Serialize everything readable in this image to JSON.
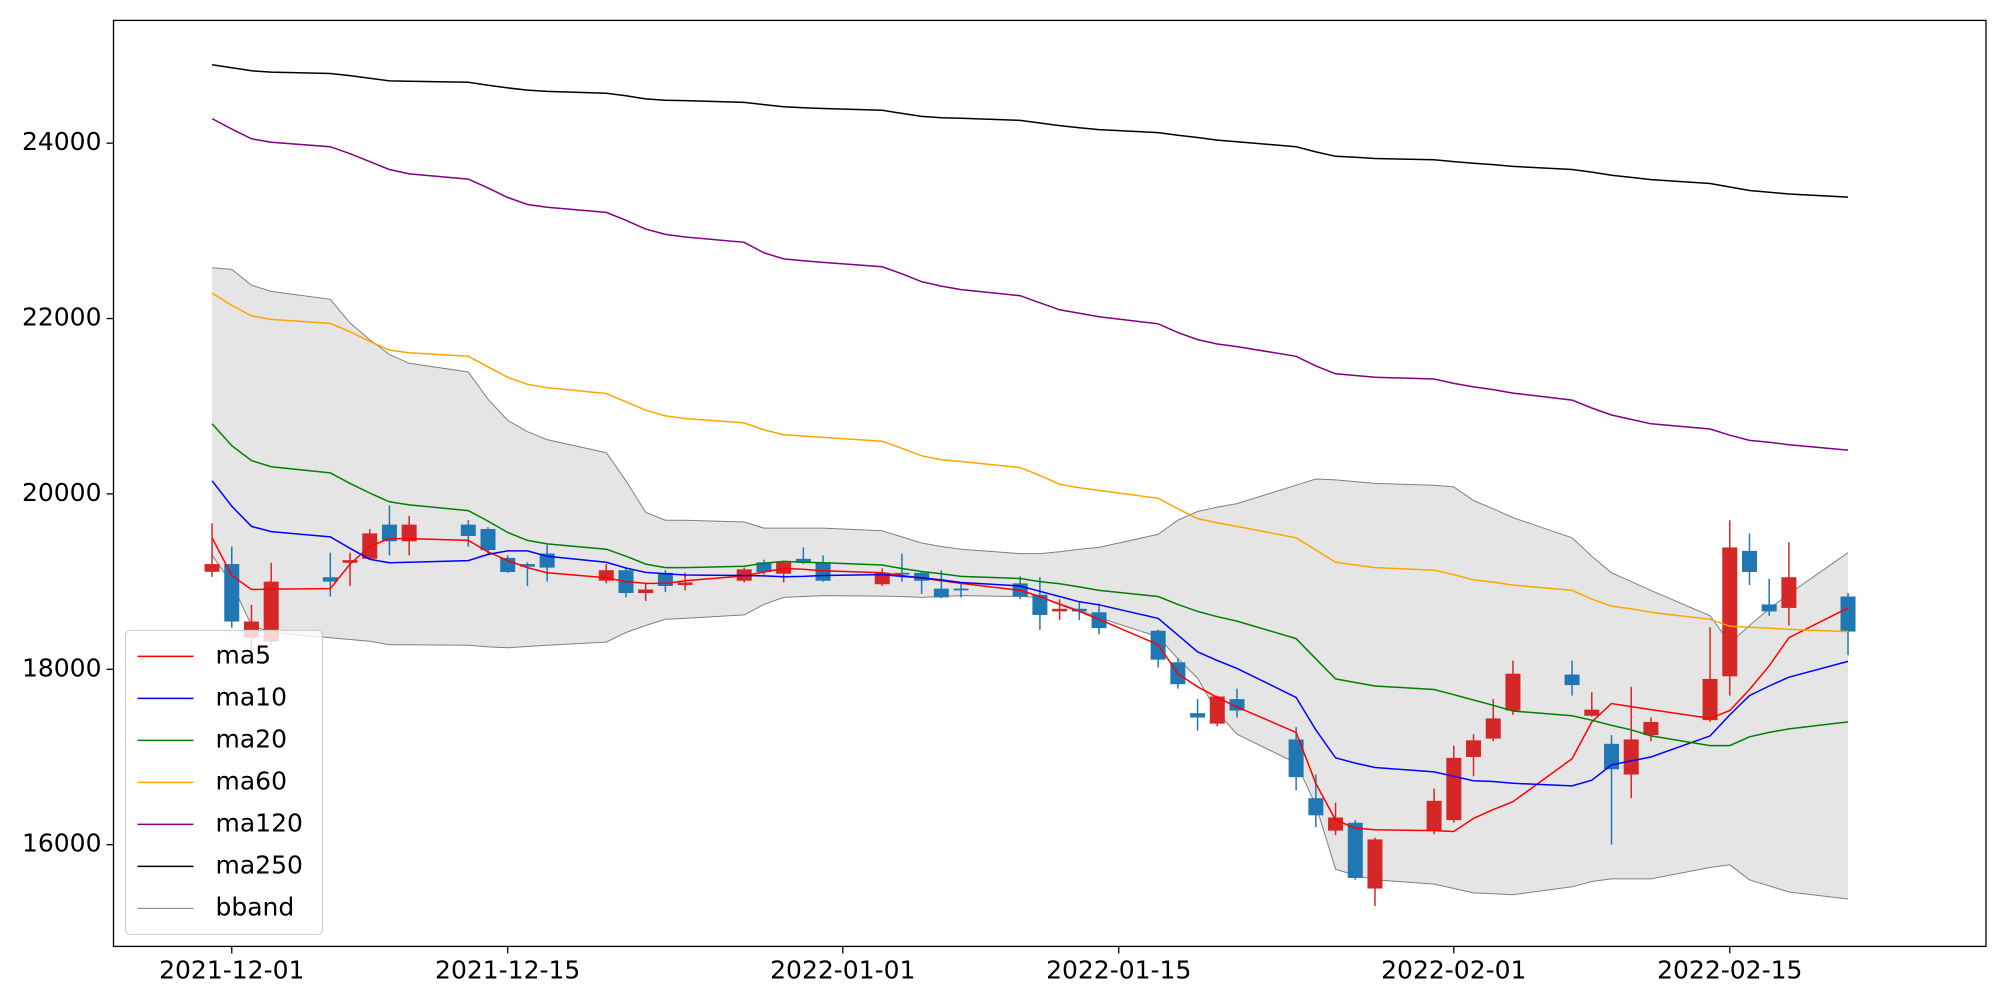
{
  "chart_data": {
    "type": "candlestick",
    "x": [
      "2021-11-30",
      "2021-12-01",
      "2021-12-02",
      "2021-12-03",
      "2021-12-06",
      "2021-12-07",
      "2021-12-08",
      "2021-12-09",
      "2021-12-10",
      "2021-12-13",
      "2021-12-14",
      "2021-12-15",
      "2021-12-16",
      "2021-12-17",
      "2021-12-20",
      "2021-12-21",
      "2021-12-22",
      "2021-12-23",
      "2021-12-24",
      "2021-12-27",
      "2021-12-28",
      "2021-12-29",
      "2021-12-30",
      "2021-12-31",
      "2022-01-03",
      "2022-01-04",
      "2022-01-05",
      "2022-01-06",
      "2022-01-07",
      "2022-01-10",
      "2022-01-11",
      "2022-01-12",
      "2022-01-13",
      "2022-01-14",
      "2022-01-17",
      "2022-01-18",
      "2022-01-19",
      "2022-01-20",
      "2022-01-21",
      "2022-01-24",
      "2022-01-25",
      "2022-01-26",
      "2022-01-27",
      "2022-01-28",
      "2022-01-31",
      "2022-02-01",
      "2022-02-02",
      "2022-02-03",
      "2022-02-04",
      "2022-02-07",
      "2022-02-08",
      "2022-02-09",
      "2022-02-10",
      "2022-02-11",
      "2022-02-14",
      "2022-02-15",
      "2022-02-16",
      "2022-02-17",
      "2022-02-18",
      "2022-02-21"
    ],
    "open": [
      19112,
      19200,
      18360,
      18315,
      19050,
      19215,
      19260,
      19650,
      19460,
      19650,
      19600,
      19270,
      19200,
      19320,
      19010,
      19130,
      18870,
      19100,
      18960,
      19010,
      19220,
      19090,
      19260,
      19220,
      18970,
      19100,
      19100,
      18920,
      18920,
      18980,
      18850,
      18660,
      18690,
      18650,
      18440,
      18080,
      17500,
      17380,
      17660,
      17200,
      16530,
      16160,
      16250,
      15500,
      16160,
      16280,
      17000,
      17210,
      17530,
      17940,
      17470,
      17150,
      16800,
      17250,
      17420,
      17920,
      19350,
      18740,
      18700,
      18830
    ],
    "high": [
      19665,
      19400,
      18735,
      19215,
      19330,
      19330,
      19600,
      19870,
      19750,
      19700,
      19620,
      19300,
      19220,
      19420,
      19200,
      19150,
      18980,
      19130,
      19100,
      19160,
      19250,
      19230,
      19390,
      19300,
      19150,
      19320,
      19110,
      19130,
      18980,
      19060,
      19050,
      18800,
      18760,
      18750,
      18450,
      18130,
      17660,
      17700,
      17780,
      17340,
      16800,
      16480,
      16280,
      16080,
      16640,
      17130,
      17260,
      17660,
      18100,
      18100,
      17740,
      17250,
      17800,
      17450,
      18480,
      19700,
      19550,
      19030,
      19450,
      18870
    ],
    "low": [
      19055,
      18475,
      18210,
      18285,
      18830,
      18950,
      19250,
      19300,
      19300,
      19400,
      19300,
      19100,
      18950,
      19000,
      18980,
      18820,
      18780,
      18880,
      18900,
      18990,
      19080,
      18990,
      19200,
      19000,
      18950,
      19000,
      18860,
      18810,
      18820,
      18800,
      18450,
      18560,
      18560,
      18400,
      18020,
      17780,
      17300,
      17350,
      17450,
      16620,
      16200,
      16110,
      15600,
      15300,
      16120,
      16250,
      16780,
      17180,
      17480,
      17700,
      17460,
      16000,
      16530,
      17180,
      17400,
      17700,
      18960,
      18610,
      18500,
      18160
    ],
    "close": [
      19200,
      18545,
      18545,
      19000,
      19000,
      19245,
      19550,
      19460,
      19650,
      19520,
      19360,
      19110,
      19170,
      19160,
      19130,
      18870,
      18910,
      18950,
      18990,
      19140,
      19110,
      19220,
      19215,
      19010,
      19100,
      19080,
      19010,
      18820,
      18900,
      18830,
      18620,
      18690,
      18660,
      18470,
      18110,
      17830,
      17450,
      17690,
      17530,
      16770,
      16335,
      16310,
      15620,
      16060,
      16500,
      16990,
      17190,
      17440,
      17950,
      17820,
      17540,
      16860,
      17200,
      17400,
      17890,
      19390,
      19110,
      18660,
      19050,
      18430
    ],
    "up_color": "#d62728",
    "down_color": "#1f77b4",
    "series": [
      {
        "name": "ma5",
        "color": "#ff0000",
        "values": [
          19500,
          19070,
          18910,
          18915,
          18920,
          19200,
          19400,
          19490,
          19490,
          19470,
          19340,
          19240,
          19160,
          19100,
          19045,
          19000,
          18980,
          18980,
          19010,
          19065,
          19110,
          19150,
          19140,
          19125,
          19100,
          19070,
          19040,
          19010,
          18980,
          18900,
          18830,
          18740,
          18660,
          18570,
          18280,
          17950,
          17800,
          17680,
          17570,
          17280,
          16700,
          16280,
          16190,
          16170,
          16160,
          16150,
          16300,
          16400,
          16490,
          16980,
          17400,
          17610,
          17575,
          17540,
          17440,
          17530,
          17770,
          18040,
          18360,
          18700
        ]
      },
      {
        "name": "ma10",
        "color": "#0000ff",
        "values": [
          20150,
          19860,
          19630,
          19570,
          19510,
          19380,
          19255,
          19215,
          19220,
          19240,
          19310,
          19350,
          19350,
          19290,
          19220,
          19155,
          19105,
          19090,
          19075,
          19070,
          19065,
          19055,
          19060,
          19070,
          19080,
          19060,
          19045,
          19020,
          18990,
          18950,
          18890,
          18830,
          18770,
          18735,
          18580,
          18390,
          18200,
          18100,
          18010,
          17680,
          17310,
          16990,
          16930,
          16880,
          16830,
          16780,
          16730,
          16720,
          16700,
          16670,
          16735,
          16910,
          16955,
          17000,
          17240,
          17480,
          17700,
          17810,
          17910,
          18090
        ]
      },
      {
        "name": "ma20",
        "color": "#008000",
        "values": [
          20800,
          20550,
          20380,
          20310,
          20240,
          20120,
          20010,
          19910,
          19875,
          19810,
          19690,
          19560,
          19470,
          19430,
          19370,
          19290,
          19200,
          19160,
          19160,
          19175,
          19210,
          19230,
          19220,
          19215,
          19190,
          19150,
          19115,
          19090,
          19060,
          19035,
          19000,
          18975,
          18940,
          18900,
          18830,
          18740,
          18660,
          18600,
          18550,
          18350,
          18120,
          17890,
          17850,
          17810,
          17770,
          17710,
          17650,
          17590,
          17525,
          17470,
          17420,
          17360,
          17310,
          17240,
          17130,
          17130,
          17230,
          17280,
          17320,
          17400
        ]
      },
      {
        "name": "ma60",
        "color": "#ffa500",
        "values": [
          22290,
          22150,
          22030,
          21990,
          21945,
          21850,
          21740,
          21640,
          21610,
          21570,
          21450,
          21330,
          21250,
          21210,
          21145,
          21050,
          20955,
          20890,
          20860,
          20810,
          20730,
          20675,
          20660,
          20645,
          20600,
          20520,
          20435,
          20390,
          20370,
          20300,
          20210,
          20110,
          20070,
          20040,
          19950,
          19830,
          19720,
          19670,
          19630,
          19500,
          19360,
          19220,
          19190,
          19160,
          19130,
          19080,
          19020,
          18995,
          18960,
          18900,
          18800,
          18720,
          18690,
          18650,
          18570,
          18490,
          18480,
          18470,
          18455,
          18430
        ]
      },
      {
        "name": "ma120",
        "color": "#800080",
        "values": [
          24280,
          24160,
          24050,
          24010,
          23960,
          23880,
          23790,
          23700,
          23650,
          23590,
          23490,
          23380,
          23300,
          23270,
          23210,
          23120,
          23020,
          22960,
          22930,
          22870,
          22750,
          22680,
          22660,
          22640,
          22590,
          22510,
          22420,
          22370,
          22330,
          22260,
          22180,
          22100,
          22060,
          22020,
          21940,
          21840,
          21760,
          21710,
          21680,
          21570,
          21460,
          21370,
          21350,
          21330,
          21310,
          21260,
          21220,
          21190,
          21150,
          21070,
          20980,
          20900,
          20850,
          20800,
          20740,
          20670,
          20610,
          20590,
          20560,
          20500
        ]
      },
      {
        "name": "ma250",
        "color": "#000000",
        "values": [
          24895,
          24860,
          24825,
          24810,
          24795,
          24770,
          24740,
          24710,
          24705,
          24695,
          24660,
          24630,
          24605,
          24590,
          24570,
          24540,
          24505,
          24490,
          24485,
          24465,
          24440,
          24415,
          24405,
          24395,
          24375,
          24340,
          24305,
          24290,
          24285,
          24260,
          24230,
          24200,
          24175,
          24155,
          24120,
          24090,
          24065,
          24035,
          24015,
          23960,
          23900,
          23850,
          23840,
          23825,
          23810,
          23790,
          23770,
          23755,
          23735,
          23700,
          23670,
          23635,
          23610,
          23585,
          23540,
          23500,
          23460,
          23440,
          23420,
          23385
        ]
      },
      {
        "name": "bband",
        "color": "#808080",
        "fill": "#e5e5e5",
        "upper": [
          22580,
          22560,
          22380,
          22310,
          22220,
          21950,
          21760,
          21590,
          21490,
          21390,
          21080,
          20840,
          20710,
          20620,
          20470,
          20150,
          19790,
          19700,
          19700,
          19680,
          19610,
          19610,
          19610,
          19610,
          19580,
          19510,
          19440,
          19400,
          19370,
          19320,
          19320,
          19340,
          19370,
          19390,
          19540,
          19700,
          19800,
          19850,
          19890,
          20100,
          20170,
          20160,
          20140,
          20120,
          20100,
          20080,
          19925,
          19830,
          19730,
          19500,
          19290,
          19100,
          19000,
          18900,
          18610,
          18300,
          18500,
          18690,
          18860,
          19330
        ],
        "lower": [
          19300,
          18980,
          18500,
          18420,
          18360,
          18340,
          18320,
          18280,
          18280,
          18275,
          18255,
          18245,
          18260,
          18275,
          18310,
          18420,
          18500,
          18570,
          18580,
          18620,
          18740,
          18820,
          18830,
          18840,
          18835,
          18830,
          18820,
          18830,
          18840,
          18830,
          18820,
          18750,
          18670,
          18590,
          18370,
          18120,
          17900,
          17510,
          17260,
          16930,
          16450,
          15720,
          15650,
          15600,
          15550,
          15500,
          15450,
          15440,
          15430,
          15520,
          15580,
          15610,
          15610,
          15610,
          15740,
          15770,
          15600,
          15530,
          15460,
          15380
        ]
      }
    ],
    "xlim": [
      "2021-11-25",
      "2022-02-28"
    ],
    "xticks": [
      "2021-12-01",
      "2021-12-15",
      "2022-01-01",
      "2022-01-15",
      "2022-02-01",
      "2022-02-15"
    ],
    "ylim": [
      14840,
      25400
    ],
    "yticks": [
      16000,
      18000,
      20000,
      22000,
      24000
    ],
    "legend": "lower left",
    "grid": false
  }
}
